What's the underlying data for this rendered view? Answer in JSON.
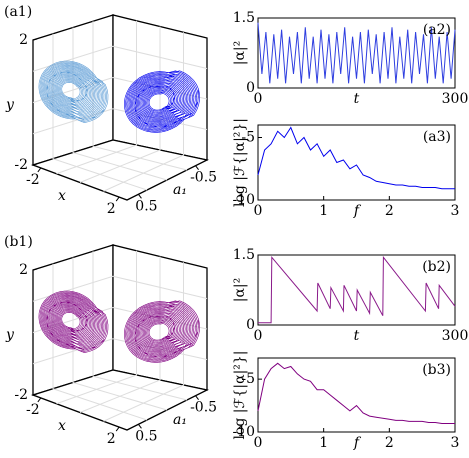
{
  "chart_data": [
    {
      "type": "3d",
      "title": "(a1)",
      "xlabel": "x",
      "ylabel": "y",
      "zlabel": "a₁",
      "xlim": [
        -2.4,
        2.4
      ],
      "xticks": [
        -2,
        2
      ],
      "ylim": [
        -2,
        2
      ],
      "yticks": [
        -2,
        2
      ],
      "zlim": [
        0.7,
        -0.7
      ],
      "zticks": [
        0.5,
        -0.5
      ],
      "colors": [
        "#5b9bd5",
        "#0000ee"
      ]
    },
    {
      "type": "line",
      "title": "(a2)",
      "xlabel": "t",
      "ylabel": "|α|²",
      "color": "#2f3fe0",
      "x": [
        0,
        6,
        12,
        18,
        24,
        30,
        36,
        42,
        48,
        54,
        60,
        66,
        72,
        78,
        84,
        90,
        96,
        102,
        108,
        114,
        120,
        126,
        132,
        138,
        144,
        150,
        156,
        162,
        168,
        174,
        180,
        186,
        192,
        198,
        204,
        210,
        216,
        222,
        228,
        234,
        240,
        246,
        252,
        258,
        264,
        270,
        276,
        282,
        288,
        294,
        300
      ],
      "values": [
        1.4,
        0.3,
        1.2,
        0.1,
        1.15,
        0.2,
        1.25,
        0.1,
        1.1,
        0.3,
        1.2,
        0.1,
        1.3,
        0.2,
        1.1,
        0.1,
        1.25,
        0.2,
        1.15,
        0.1,
        1.2,
        0.3,
        1.3,
        0.1,
        1.1,
        0.2,
        1.2,
        0.1,
        1.25,
        0.3,
        1.15,
        0.1,
        1.2,
        0.2,
        1.3,
        0.1,
        1.1,
        0.2,
        1.25,
        0.1,
        1.2,
        0.3,
        1.15,
        0.1,
        1.3,
        0.2,
        1.1,
        0.1,
        1.2,
        0.2,
        1.25
      ],
      "xlim": [
        0,
        300
      ],
      "xticks": [
        0,
        300
      ],
      "ylim": [
        0,
        1.5
      ],
      "yticks": [
        0,
        1.5
      ]
    },
    {
      "type": "line",
      "title": "(a3)",
      "xlabel": "f",
      "ylabel": "log |ℱ{|α|²}|",
      "color": "#0000ee",
      "x": [
        0,
        0.1,
        0.2,
        0.3,
        0.4,
        0.5,
        0.6,
        0.7,
        0.8,
        0.9,
        1,
        1.1,
        1.2,
        1.3,
        1.4,
        1.5,
        1.6,
        1.7,
        1.8,
        1.9,
        2,
        2.1,
        2.2,
        2.3,
        2.4,
        2.5,
        2.6,
        2.7,
        2.8,
        2.9,
        3
      ],
      "values": [
        -8,
        -6,
        -5.5,
        -4.5,
        -5,
        -4.2,
        -5.5,
        -5,
        -6,
        -5.5,
        -6.5,
        -6,
        -7,
        -6.8,
        -7.5,
        -7.2,
        -8,
        -8.2,
        -8.5,
        -8.6,
        -8.7,
        -8.8,
        -8.8,
        -8.9,
        -8.9,
        -9,
        -9,
        -9,
        -9.1,
        -9.1,
        -9.1
      ],
      "xlim": [
        0,
        3
      ],
      "xticks": [
        0,
        1,
        2,
        3
      ],
      "ylim": [
        -10,
        -4
      ],
      "yticks": [
        -10,
        -5
      ]
    },
    {
      "type": "3d",
      "title": "(b1)",
      "xlabel": "x",
      "ylabel": "y",
      "zlabel": "a₁",
      "xlim": [
        -2.4,
        2.4
      ],
      "xticks": [
        -2,
        2
      ],
      "ylim": [
        -2,
        2
      ],
      "yticks": [
        -2,
        2
      ],
      "zlim": [
        0.7,
        -0.7
      ],
      "zticks": [
        0.5,
        -0.5
      ],
      "colors": [
        "#800080",
        "#800080"
      ]
    },
    {
      "type": "line",
      "title": "(b2)",
      "xlabel": "t",
      "ylabel": "|α|²",
      "color": "#8a1a8a",
      "x": [
        0,
        20,
        21,
        90,
        91,
        110,
        111,
        130,
        131,
        150,
        151,
        170,
        171,
        190,
        191,
        255,
        256,
        275,
        276,
        300
      ],
      "values": [
        0.05,
        0.05,
        1.45,
        0.3,
        0.9,
        0.35,
        0.8,
        0.3,
        0.85,
        0.3,
        0.75,
        0.25,
        0.7,
        0.2,
        1.45,
        0.3,
        0.9,
        0.35,
        0.85,
        0.4
      ],
      "xlim": [
        0,
        300
      ],
      "xticks": [
        0,
        300
      ],
      "ylim": [
        0,
        1.5
      ],
      "yticks": [
        0,
        1.5
      ]
    },
    {
      "type": "line",
      "title": "(b3)",
      "xlabel": "f",
      "ylabel": "log |ℱ{|α|²}|",
      "color": "#800080",
      "x": [
        0,
        0.1,
        0.2,
        0.3,
        0.4,
        0.5,
        0.6,
        0.7,
        0.8,
        0.9,
        1,
        1.1,
        1.2,
        1.3,
        1.4,
        1.5,
        1.6,
        1.7,
        1.8,
        1.9,
        2,
        2.1,
        2.2,
        2.3,
        2.4,
        2.5,
        2.6,
        2.7,
        2.8,
        2.9,
        3
      ],
      "values": [
        -8,
        -5,
        -4,
        -3.5,
        -4,
        -3.8,
        -4.5,
        -5,
        -5.2,
        -6,
        -6,
        -6.5,
        -7,
        -7.5,
        -8,
        -7.5,
        -8.2,
        -8.5,
        -8.6,
        -8.7,
        -8.8,
        -8.9,
        -8.9,
        -9,
        -9,
        -9,
        -9.1,
        -9.1,
        -9.2,
        -9.2,
        -9.2
      ],
      "xlim": [
        0,
        3
      ],
      "xticks": [
        0,
        1,
        2,
        3
      ],
      "ylim": [
        -10,
        -3
      ],
      "yticks": [
        -10,
        -5
      ]
    }
  ]
}
